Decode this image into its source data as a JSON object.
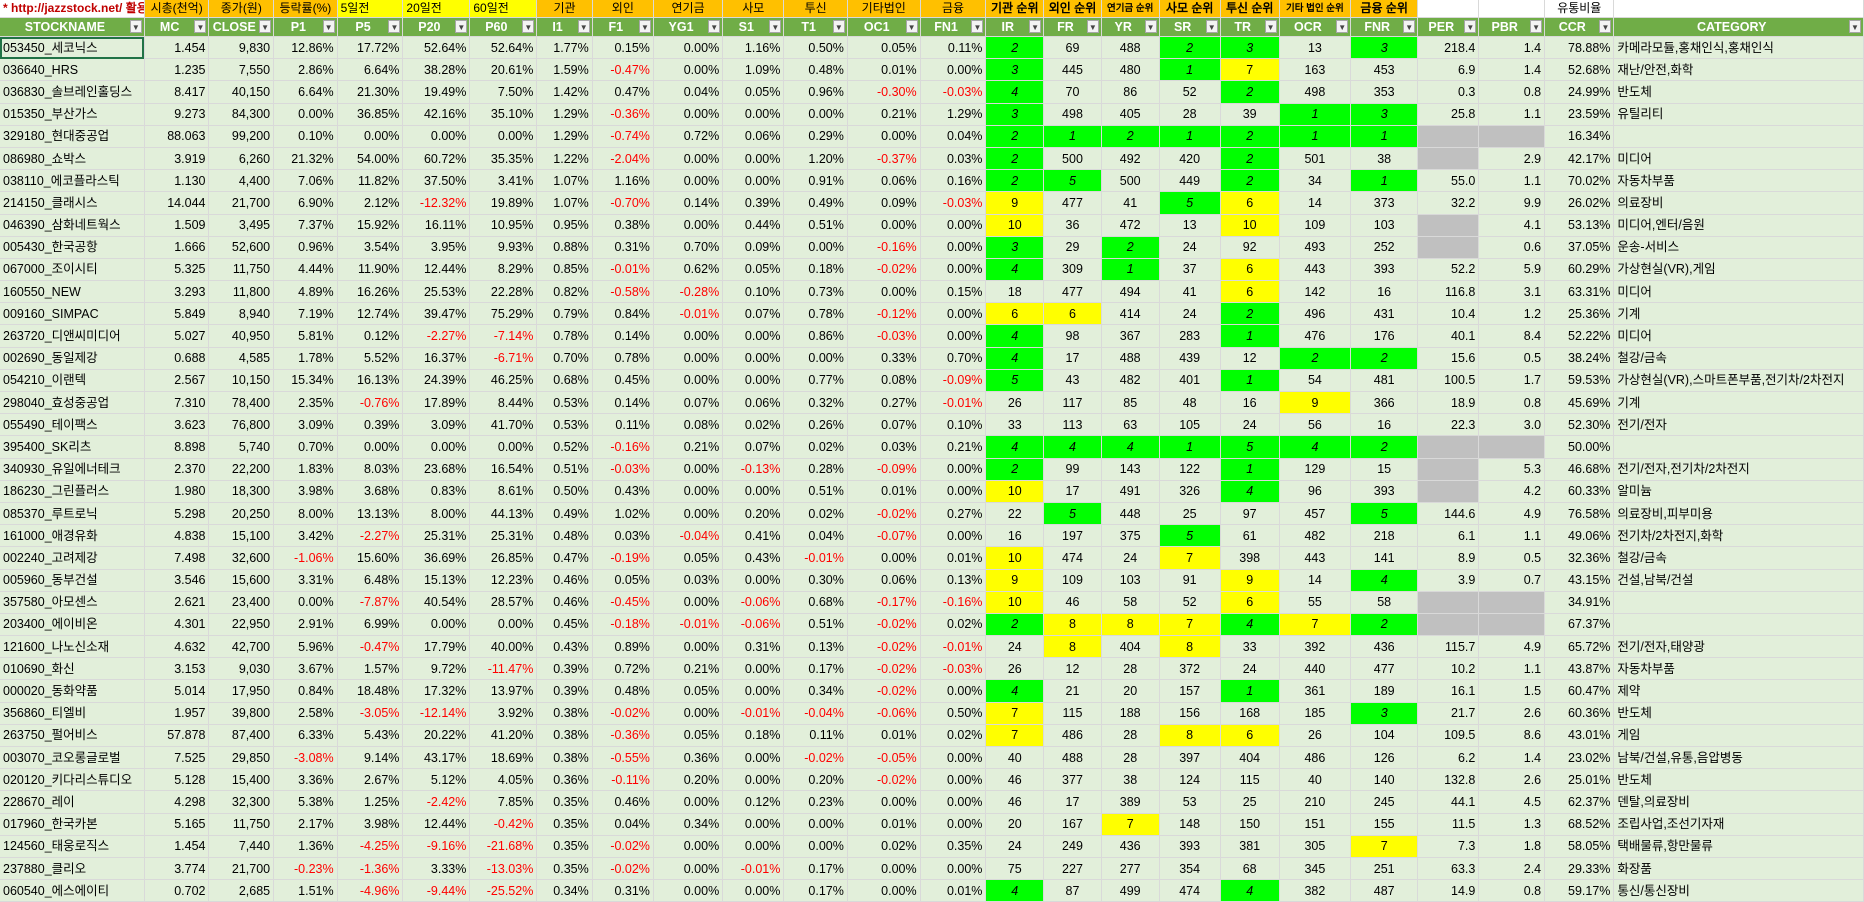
{
  "top_row": {
    "link": "* http://jazzstock.net/ 활용",
    "labels": [
      "시총(천억)",
      "종가(원)",
      "등락률(%)",
      "5일전",
      "20일전",
      "60일전",
      "기관",
      "외인",
      "연기금",
      "사모",
      "투신",
      "기타법인",
      "금융",
      "기관 순위",
      "외인 순위",
      "연기금 순위",
      "사모 순위",
      "투신 순위",
      "기타 법인 순위",
      "금융 순위",
      "",
      "",
      "유통비율",
      ""
    ]
  },
  "headers": [
    "STOCKNAME",
    "MC",
    "CLOSE",
    "P1",
    "P5",
    "P20",
    "P60",
    "I1",
    "F1",
    "YG1",
    "S1",
    "T1",
    "OC1",
    "FN1",
    "IR",
    "FR",
    "YR",
    "SR",
    "TR",
    "OCR",
    "FNR",
    "PER",
    "PBR",
    "CCR",
    "CATEGORY"
  ],
  "colors": {
    "header_green": "#70ad47",
    "row_green": "#e2efda",
    "yellow": "#ffff00",
    "green": "#00ff00",
    "orange": "#ffc000",
    "negative": "#ff0000",
    "gray": "#c0c0c0"
  },
  "rows": [
    [
      "053450_세코닉스",
      "1.454",
      "9,830",
      "12.86%",
      "17.72%",
      "52.64%",
      "52.64%",
      "1.77%",
      "0.15%",
      "0.00%",
      "1.16%",
      "0.50%",
      "0.05%",
      "0.11%",
      "2",
      "69",
      "488",
      "2",
      "3",
      "13",
      "3",
      "218.4",
      "1.4",
      "78.88%",
      "카메라모듈,홍채인식,홍채인식"
    ],
    [
      "036640_HRS",
      "1.235",
      "7,550",
      "2.86%",
      "6.64%",
      "38.28%",
      "20.61%",
      "1.59%",
      "-0.47%",
      "0.00%",
      "1.09%",
      "0.48%",
      "0.01%",
      "0.00%",
      "3",
      "445",
      "480",
      "1",
      "7",
      "163",
      "453",
      "6.9",
      "1.4",
      "52.68%",
      "재난/안전,화학"
    ],
    [
      "036830_솔브레인홀딩스",
      "8.417",
      "40,150",
      "6.64%",
      "21.30%",
      "19.49%",
      "7.50%",
      "1.42%",
      "0.47%",
      "0.04%",
      "0.05%",
      "0.96%",
      "-0.30%",
      "-0.03%",
      "4",
      "70",
      "86",
      "52",
      "2",
      "498",
      "353",
      "0.3",
      "0.8",
      "24.99%",
      "반도체"
    ],
    [
      "015350_부산가스",
      "9.273",
      "84,300",
      "0.00%",
      "36.85%",
      "42.16%",
      "35.10%",
      "1.29%",
      "-0.36%",
      "0.00%",
      "0.00%",
      "0.00%",
      "0.21%",
      "1.29%",
      "3",
      "498",
      "405",
      "28",
      "39",
      "1",
      "3",
      "25.8",
      "1.1",
      "23.59%",
      "유틸리티"
    ],
    [
      "329180_현대중공업",
      "88.063",
      "99,200",
      "0.10%",
      "0.00%",
      "0.00%",
      "0.00%",
      "1.29%",
      "-0.74%",
      "0.72%",
      "0.06%",
      "0.29%",
      "0.00%",
      "0.04%",
      "2",
      "1",
      "2",
      "1",
      "2",
      "1",
      "1",
      "",
      "",
      "16.34%",
      ""
    ],
    [
      "086980_쇼박스",
      "3.919",
      "6,260",
      "21.32%",
      "54.00%",
      "60.72%",
      "35.35%",
      "1.22%",
      "-2.04%",
      "0.00%",
      "0.00%",
      "1.20%",
      "-0.37%",
      "0.03%",
      "2",
      "500",
      "492",
      "420",
      "2",
      "501",
      "38",
      "",
      "2.9",
      "42.17%",
      "미디어"
    ],
    [
      "038110_에코플라스틱",
      "1.130",
      "4,400",
      "7.06%",
      "11.82%",
      "37.50%",
      "3.41%",
      "1.07%",
      "1.16%",
      "0.00%",
      "0.00%",
      "0.91%",
      "0.06%",
      "0.16%",
      "2",
      "5",
      "500",
      "449",
      "2",
      "34",
      "1",
      "55.0",
      "1.1",
      "70.02%",
      "자동차부품"
    ],
    [
      "214150_클래시스",
      "14.044",
      "21,700",
      "6.90%",
      "2.12%",
      "-12.32%",
      "19.89%",
      "1.07%",
      "-0.70%",
      "0.14%",
      "0.39%",
      "0.49%",
      "0.09%",
      "-0.03%",
      "9",
      "477",
      "41",
      "5",
      "6",
      "14",
      "373",
      "32.2",
      "9.9",
      "26.02%",
      "의료장비"
    ],
    [
      "046390_삼화네트웍스",
      "1.509",
      "3,495",
      "7.37%",
      "15.92%",
      "16.11%",
      "10.95%",
      "0.95%",
      "0.38%",
      "0.00%",
      "0.44%",
      "0.51%",
      "0.00%",
      "0.00%",
      "10",
      "36",
      "472",
      "13",
      "10",
      "109",
      "103",
      "",
      "4.1",
      "53.13%",
      "미디어,엔터/음원"
    ],
    [
      "005430_한국공항",
      "1.666",
      "52,600",
      "0.96%",
      "3.54%",
      "3.95%",
      "9.93%",
      "0.88%",
      "0.31%",
      "0.70%",
      "0.09%",
      "0.00%",
      "-0.16%",
      "0.00%",
      "3",
      "29",
      "2",
      "24",
      "92",
      "493",
      "252",
      "",
      "0.6",
      "37.05%",
      "운송-서비스"
    ],
    [
      "067000_조이시티",
      "5.325",
      "11,750",
      "4.44%",
      "11.90%",
      "12.44%",
      "8.29%",
      "0.85%",
      "-0.01%",
      "0.62%",
      "0.05%",
      "0.18%",
      "-0.02%",
      "0.00%",
      "4",
      "309",
      "1",
      "37",
      "6",
      "443",
      "393",
      "52.2",
      "5.9",
      "60.29%",
      "가상현실(VR),게임"
    ],
    [
      "160550_NEW",
      "3.293",
      "11,800",
      "4.89%",
      "16.26%",
      "25.53%",
      "22.28%",
      "0.82%",
      "-0.58%",
      "-0.28%",
      "0.10%",
      "0.73%",
      "0.00%",
      "0.15%",
      "18",
      "477",
      "494",
      "41",
      "6",
      "142",
      "16",
      "116.8",
      "3.1",
      "63.31%",
      "미디어"
    ],
    [
      "009160_SIMPAC",
      "5.849",
      "8,940",
      "7.19%",
      "12.74%",
      "39.47%",
      "75.29%",
      "0.79%",
      "0.84%",
      "-0.01%",
      "0.07%",
      "0.78%",
      "-0.12%",
      "0.00%",
      "6",
      "6",
      "414",
      "24",
      "2",
      "496",
      "431",
      "10.4",
      "1.2",
      "25.36%",
      "기계"
    ],
    [
      "263720_디앤씨미디어",
      "5.027",
      "40,950",
      "5.81%",
      "0.12%",
      "-2.27%",
      "-7.14%",
      "0.78%",
      "0.14%",
      "0.00%",
      "0.00%",
      "0.86%",
      "-0.03%",
      "0.00%",
      "4",
      "98",
      "367",
      "283",
      "1",
      "476",
      "176",
      "40.1",
      "8.4",
      "52.22%",
      "미디어"
    ],
    [
      "002690_동일제강",
      "0.688",
      "4,585",
      "1.78%",
      "5.52%",
      "16.37%",
      "-6.71%",
      "0.70%",
      "0.78%",
      "0.00%",
      "0.00%",
      "0.00%",
      "0.33%",
      "0.70%",
      "4",
      "17",
      "488",
      "439",
      "12",
      "2",
      "2",
      "15.6",
      "0.5",
      "38.24%",
      "철강/금속"
    ],
    [
      "054210_이랜텍",
      "2.567",
      "10,150",
      "15.34%",
      "16.13%",
      "24.39%",
      "46.25%",
      "0.68%",
      "0.45%",
      "0.00%",
      "0.00%",
      "0.77%",
      "0.08%",
      "-0.09%",
      "5",
      "43",
      "482",
      "401",
      "1",
      "54",
      "481",
      "100.5",
      "1.7",
      "59.53%",
      "가상현실(VR),스마트폰부품,전기차/2차전지"
    ],
    [
      "298040_효성중공업",
      "7.310",
      "78,400",
      "2.35%",
      "-0.76%",
      "17.89%",
      "8.44%",
      "0.53%",
      "0.14%",
      "0.07%",
      "0.06%",
      "0.32%",
      "0.27%",
      "-0.01%",
      "26",
      "117",
      "85",
      "48",
      "16",
      "9",
      "366",
      "18.9",
      "0.8",
      "45.69%",
      "기계"
    ],
    [
      "055490_테이팩스",
      "3.623",
      "76,800",
      "3.09%",
      "0.39%",
      "3.09%",
      "41.70%",
      "0.53%",
      "0.11%",
      "0.08%",
      "0.02%",
      "0.26%",
      "0.07%",
      "0.10%",
      "33",
      "113",
      "63",
      "105",
      "24",
      "56",
      "16",
      "22.3",
      "3.0",
      "52.30%",
      "전기/전자"
    ],
    [
      "395400_SK리츠",
      "8.898",
      "5,740",
      "0.70%",
      "0.00%",
      "0.00%",
      "0.00%",
      "0.52%",
      "-0.16%",
      "0.21%",
      "0.07%",
      "0.02%",
      "0.03%",
      "0.21%",
      "4",
      "4",
      "4",
      "1",
      "5",
      "4",
      "2",
      "",
      "",
      "50.00%",
      ""
    ],
    [
      "340930_유일에너테크",
      "2.370",
      "22,200",
      "1.83%",
      "8.03%",
      "23.68%",
      "16.54%",
      "0.51%",
      "-0.03%",
      "0.00%",
      "-0.13%",
      "0.28%",
      "-0.09%",
      "0.00%",
      "2",
      "99",
      "143",
      "122",
      "1",
      "129",
      "15",
      "",
      "5.3",
      "46.68%",
      "전기/전자,전기차/2차전지"
    ],
    [
      "186230_그린플러스",
      "1.980",
      "18,300",
      "3.98%",
      "3.68%",
      "0.83%",
      "8.61%",
      "0.50%",
      "0.43%",
      "0.00%",
      "0.00%",
      "0.51%",
      "0.01%",
      "0.00%",
      "10",
      "17",
      "491",
      "326",
      "4",
      "96",
      "393",
      "",
      "4.2",
      "60.33%",
      "알미늄"
    ],
    [
      "085370_루트로닉",
      "5.298",
      "20,250",
      "8.00%",
      "13.13%",
      "8.00%",
      "44.13%",
      "0.49%",
      "1.02%",
      "0.00%",
      "0.20%",
      "0.02%",
      "-0.02%",
      "0.27%",
      "22",
      "5",
      "448",
      "25",
      "97",
      "457",
      "5",
      "144.6",
      "4.9",
      "76.58%",
      "의료장비,피부미용"
    ],
    [
      "161000_애경유화",
      "4.838",
      "15,100",
      "3.42%",
      "-2.27%",
      "25.31%",
      "25.31%",
      "0.48%",
      "0.03%",
      "-0.04%",
      "0.41%",
      "0.04%",
      "-0.07%",
      "0.00%",
      "16",
      "197",
      "375",
      "5",
      "61",
      "482",
      "218",
      "6.1",
      "1.1",
      "49.06%",
      "전기차/2차전지,화학"
    ],
    [
      "002240_고려제강",
      "7.498",
      "32,600",
      "-1.06%",
      "15.60%",
      "36.69%",
      "26.85%",
      "0.47%",
      "-0.19%",
      "0.05%",
      "0.43%",
      "-0.01%",
      "0.00%",
      "0.01%",
      "10",
      "474",
      "24",
      "7",
      "398",
      "443",
      "141",
      "8.9",
      "0.5",
      "32.36%",
      "철강/금속"
    ],
    [
      "005960_동부건설",
      "3.546",
      "15,600",
      "3.31%",
      "6.48%",
      "15.13%",
      "12.23%",
      "0.46%",
      "0.05%",
      "0.03%",
      "0.00%",
      "0.30%",
      "0.06%",
      "0.13%",
      "9",
      "109",
      "103",
      "91",
      "9",
      "14",
      "4",
      "3.9",
      "0.7",
      "43.15%",
      "건설,남북/건설"
    ],
    [
      "357580_아모센스",
      "2.621",
      "23,400",
      "0.00%",
      "-7.87%",
      "40.54%",
      "28.57%",
      "0.46%",
      "-0.45%",
      "0.00%",
      "-0.06%",
      "0.68%",
      "-0.17%",
      "-0.16%",
      "10",
      "46",
      "58",
      "52",
      "6",
      "55",
      "58",
      "",
      "",
      "34.91%",
      ""
    ],
    [
      "203400_에이비온",
      "4.301",
      "22,950",
      "2.91%",
      "6.99%",
      "0.00%",
      "0.00%",
      "0.45%",
      "-0.18%",
      "-0.01%",
      "-0.06%",
      "0.51%",
      "-0.02%",
      "0.02%",
      "2",
      "8",
      "8",
      "7",
      "4",
      "7",
      "2",
      "",
      "",
      "67.37%",
      ""
    ],
    [
      "121600_나노신소재",
      "4.632",
      "42,700",
      "5.96%",
      "-0.47%",
      "17.79%",
      "40.00%",
      "0.43%",
      "0.89%",
      "0.00%",
      "0.31%",
      "0.13%",
      "-0.02%",
      "-0.01%",
      "24",
      "8",
      "404",
      "8",
      "33",
      "392",
      "436",
      "115.7",
      "4.9",
      "65.72%",
      "전기/전자,태양광"
    ],
    [
      "010690_화신",
      "3.153",
      "9,030",
      "3.67%",
      "1.57%",
      "9.72%",
      "-11.47%",
      "0.39%",
      "0.72%",
      "0.21%",
      "0.00%",
      "0.17%",
      "-0.02%",
      "-0.03%",
      "26",
      "12",
      "28",
      "372",
      "24",
      "440",
      "477",
      "10.2",
      "1.1",
      "43.87%",
      "자동차부품"
    ],
    [
      "000020_동화약품",
      "5.014",
      "17,950",
      "0.84%",
      "18.48%",
      "17.32%",
      "13.97%",
      "0.39%",
      "0.48%",
      "0.05%",
      "0.00%",
      "0.34%",
      "-0.02%",
      "0.00%",
      "4",
      "21",
      "20",
      "157",
      "1",
      "361",
      "189",
      "16.1",
      "1.5",
      "60.47%",
      "제약"
    ],
    [
      "356860_티엘비",
      "1.957",
      "39,800",
      "2.58%",
      "-3.05%",
      "-12.14%",
      "3.92%",
      "0.38%",
      "-0.02%",
      "0.00%",
      "-0.01%",
      "-0.04%",
      "-0.06%",
      "0.50%",
      "7",
      "115",
      "188",
      "156",
      "168",
      "185",
      "3",
      "21.7",
      "2.6",
      "60.36%",
      "반도체"
    ],
    [
      "263750_펄어비스",
      "57.878",
      "87,400",
      "6.33%",
      "5.43%",
      "20.22%",
      "41.20%",
      "0.38%",
      "-0.36%",
      "0.05%",
      "0.18%",
      "0.11%",
      "0.01%",
      "0.02%",
      "7",
      "486",
      "28",
      "8",
      "6",
      "26",
      "104",
      "109.5",
      "8.6",
      "43.01%",
      "게임"
    ],
    [
      "003070_코오롱글로벌",
      "7.525",
      "29,850",
      "-3.08%",
      "9.14%",
      "43.17%",
      "18.69%",
      "0.38%",
      "-0.55%",
      "0.36%",
      "0.00%",
      "-0.02%",
      "-0.05%",
      "0.00%",
      "40",
      "488",
      "28",
      "397",
      "404",
      "486",
      "126",
      "6.2",
      "1.4",
      "23.02%",
      "남북/건설,유통,음압병동"
    ],
    [
      "020120_키다리스튜디오",
      "5.128",
      "15,400",
      "3.36%",
      "2.67%",
      "5.12%",
      "4.05%",
      "0.36%",
      "-0.11%",
      "0.20%",
      "0.00%",
      "0.20%",
      "-0.02%",
      "0.00%",
      "46",
      "377",
      "38",
      "124",
      "115",
      "40",
      "140",
      "132.8",
      "2.6",
      "25.01%",
      "반도체"
    ],
    [
      "228670_레이",
      "4.298",
      "32,300",
      "5.38%",
      "1.25%",
      "-2.42%",
      "7.85%",
      "0.35%",
      "0.46%",
      "0.00%",
      "0.12%",
      "0.23%",
      "0.00%",
      "0.00%",
      "46",
      "17",
      "389",
      "53",
      "25",
      "210",
      "245",
      "44.1",
      "4.5",
      "62.37%",
      "덴탈,의료장비"
    ],
    [
      "017960_한국카본",
      "5.165",
      "11,750",
      "2.17%",
      "3.98%",
      "12.44%",
      "-0.42%",
      "0.35%",
      "0.04%",
      "0.34%",
      "0.00%",
      "0.00%",
      "0.01%",
      "0.00%",
      "20",
      "167",
      "7",
      "148",
      "150",
      "151",
      "155",
      "11.5",
      "1.3",
      "68.52%",
      "조립사업,조선기자재"
    ],
    [
      "124560_태웅로직스",
      "1.454",
      "7,440",
      "1.36%",
      "-4.25%",
      "-9.16%",
      "-21.68%",
      "0.35%",
      "-0.02%",
      "0.00%",
      "0.00%",
      "0.00%",
      "0.02%",
      "0.35%",
      "24",
      "249",
      "436",
      "393",
      "381",
      "305",
      "7",
      "7.3",
      "1.8",
      "58.05%",
      "택배물류,항만물류"
    ],
    [
      "237880_클리오",
      "3.774",
      "21,700",
      "-0.23%",
      "-1.36%",
      "3.33%",
      "-13.03%",
      "0.35%",
      "-0.02%",
      "0.00%",
      "-0.01%",
      "0.17%",
      "0.00%",
      "0.00%",
      "75",
      "227",
      "277",
      "354",
      "68",
      "345",
      "251",
      "63.3",
      "2.4",
      "29.33%",
      "화장품"
    ],
    [
      "060540_에스에이티",
      "0.702",
      "2,685",
      "1.51%",
      "-4.96%",
      "-9.44%",
      "-25.52%",
      "0.34%",
      "0.31%",
      "0.00%",
      "0.00%",
      "0.17%",
      "0.00%",
      "0.01%",
      "4",
      "87",
      "499",
      "474",
      "4",
      "382",
      "487",
      "14.9",
      "0.8",
      "59.17%",
      "통신/통신장비"
    ]
  ]
}
